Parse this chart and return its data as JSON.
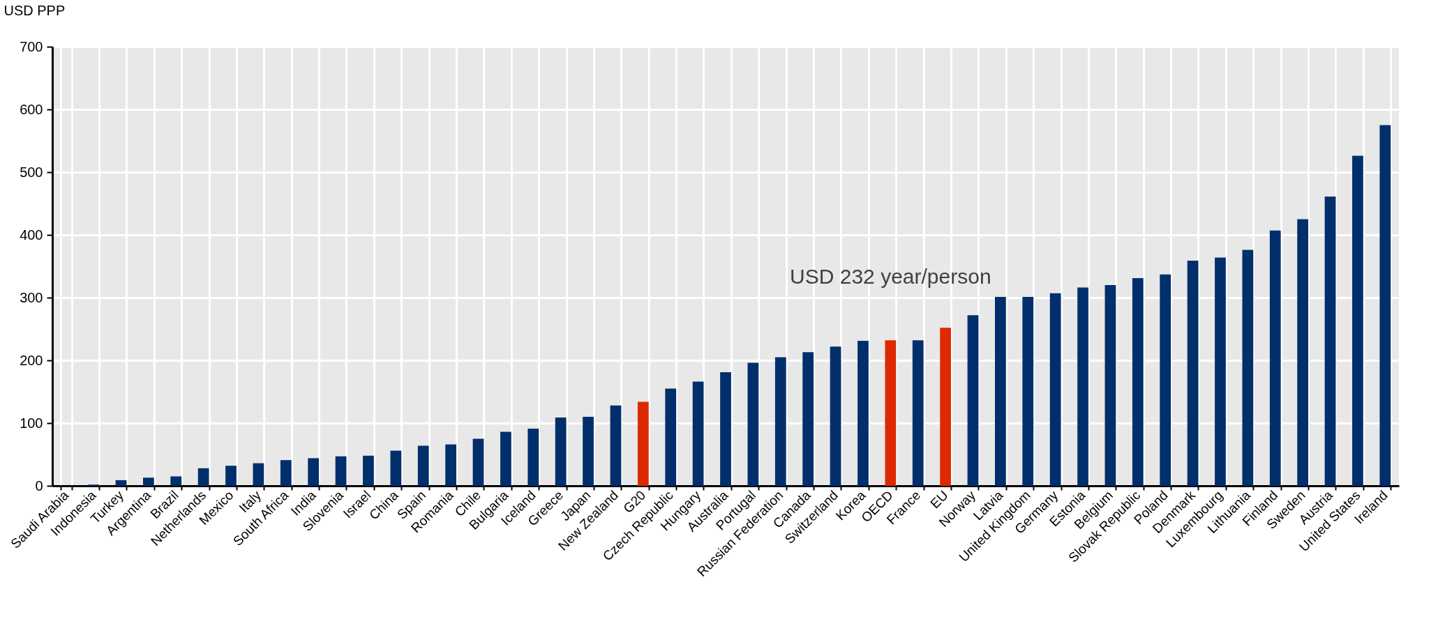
{
  "chart_data": {
    "type": "bar",
    "ylabel": "USD PPP",
    "categories": [
      "Saudi Arabia",
      "Indonesia",
      "Turkey",
      "Argentina",
      "Brazil",
      "Netherlands",
      "Mexico",
      "Italy",
      "South Africa",
      "India",
      "Slovenia",
      "Israel",
      "China",
      "Spain",
      "Romania",
      "Chile",
      "Bulgaria",
      "Iceland",
      "Greece",
      "Japan",
      "New Zealand",
      "G20",
      "Czech Republic",
      "Hungary",
      "Australia",
      "Portugal",
      "Russian Federation",
      "Canada",
      "Switzerland",
      "Korea",
      "OECD",
      "France",
      "EU",
      "Norway",
      "Latvia",
      "United Kingdom",
      "Germany",
      "Estonia",
      "Belgium",
      "Slovak Republic",
      "Poland",
      "Denmark",
      "Luxembourg",
      "Lithuania",
      "Finland",
      "Sweden",
      "Austria",
      "United States",
      "Ireland"
    ],
    "values": [
      0,
      2,
      9,
      13,
      15,
      28,
      32,
      36,
      41,
      44,
      47,
      48,
      56,
      64,
      66,
      75,
      86,
      91,
      109,
      110,
      128,
      134,
      155,
      166,
      181,
      196,
      205,
      213,
      222,
      231,
      232,
      232,
      252,
      272,
      301,
      301,
      307,
      316,
      320,
      331,
      337,
      359,
      364,
      376,
      407,
      425,
      461,
      526,
      575
    ],
    "colors": [
      "#002f6c",
      "#002f6c",
      "#002f6c",
      "#002f6c",
      "#002f6c",
      "#002f6c",
      "#002f6c",
      "#002f6c",
      "#002f6c",
      "#002f6c",
      "#002f6c",
      "#002f6c",
      "#002f6c",
      "#002f6c",
      "#002f6c",
      "#002f6c",
      "#002f6c",
      "#002f6c",
      "#002f6c",
      "#002f6c",
      "#002f6c",
      "#dc2a00",
      "#002f6c",
      "#002f6c",
      "#002f6c",
      "#002f6c",
      "#002f6c",
      "#002f6c",
      "#002f6c",
      "#002f6c",
      "#dc2a00",
      "#002f6c",
      "#dc2a00",
      "#002f6c",
      "#002f6c",
      "#002f6c",
      "#002f6c",
      "#002f6c",
      "#002f6c",
      "#002f6c",
      "#002f6c",
      "#002f6c",
      "#002f6c",
      "#002f6c",
      "#002f6c",
      "#002f6c",
      "#002f6c",
      "#002f6c",
      "#002f6c"
    ],
    "ylim": [
      0,
      700
    ],
    "yticks": [
      0,
      100,
      200,
      300,
      400,
      500,
      600,
      700
    ],
    "grid": true,
    "annotations": [
      {
        "text": "USD 232 year/person",
        "x": "OECD",
        "y": 232
      }
    ]
  }
}
